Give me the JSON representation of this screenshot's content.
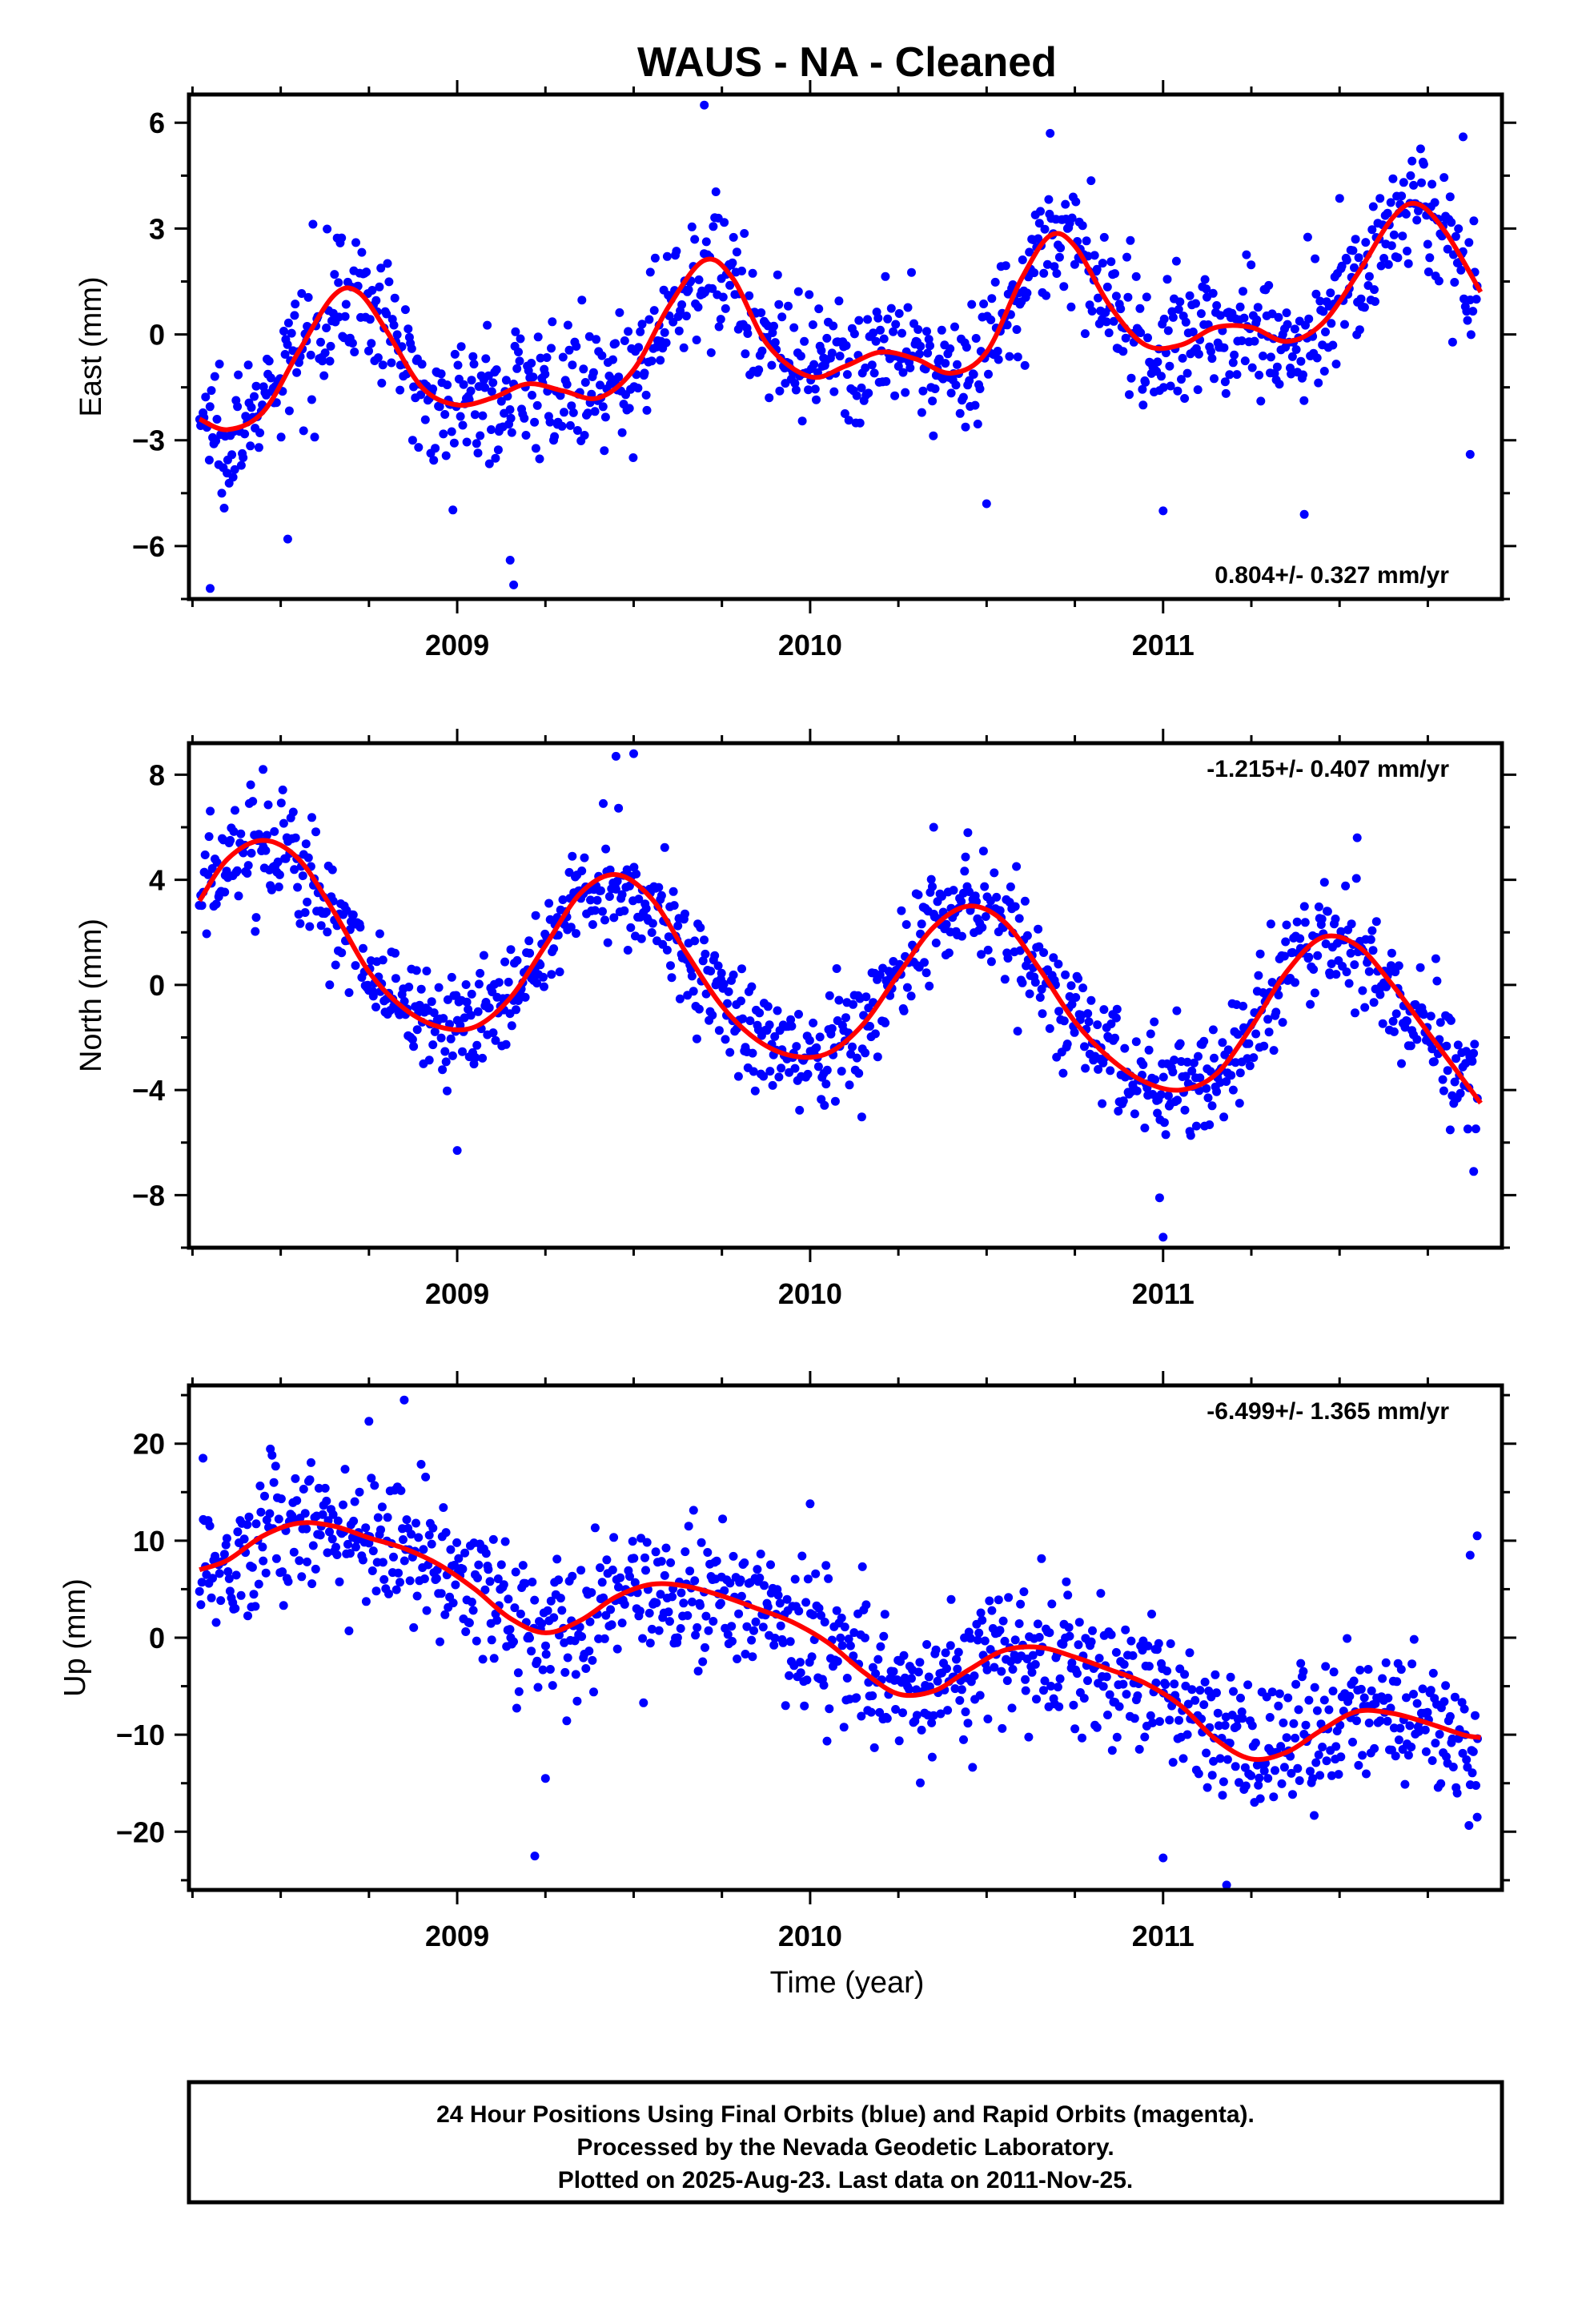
{
  "title": "WAUS  - NA - Cleaned",
  "x_axis_label": "Time (year)",
  "footer": {
    "line1": "24 Hour Positions Using Final Orbits (blue) and Rapid Orbits (magenta).",
    "line2": "Processed by the Nevada Geodetic Laboratory.",
    "line3": "Plotted on 2025-Aug-23. Last data on 2011-Nov-25."
  },
  "colors": {
    "points": "#0000ff",
    "fit": "#ff0000",
    "frame": "#000000"
  },
  "chart_data": [
    {
      "type": "scatter",
      "ylabel": "East (mm)",
      "rate_label": "0.804+/- 0.327 mm/yr",
      "xlim": [
        2008.24,
        2011.96
      ],
      "ylim": [
        -7.5,
        6.8
      ],
      "x_ticks": [
        2009,
        2010,
        2011
      ],
      "y_ticks": [
        -6,
        -3,
        0,
        3,
        6
      ],
      "grid": false,
      "point_color": "#0000ff",
      "fit_color": "#ff0000",
      "fit_curve": [
        [
          2008.27,
          -2.4
        ],
        [
          2008.35,
          -2.7
        ],
        [
          2008.45,
          -2.2
        ],
        [
          2008.55,
          -0.5
        ],
        [
          2008.65,
          1.1
        ],
        [
          2008.72,
          1.2
        ],
        [
          2008.8,
          0.1
        ],
        [
          2008.9,
          -1.5
        ],
        [
          2009.0,
          -2.0
        ],
        [
          2009.1,
          -1.8
        ],
        [
          2009.2,
          -1.4
        ],
        [
          2009.3,
          -1.6
        ],
        [
          2009.4,
          -1.8
        ],
        [
          2009.5,
          -1.0
        ],
        [
          2009.6,
          0.8
        ],
        [
          2009.7,
          2.1
        ],
        [
          2009.78,
          1.6
        ],
        [
          2009.88,
          -0.3
        ],
        [
          2010.0,
          -1.2
        ],
        [
          2010.1,
          -0.9
        ],
        [
          2010.2,
          -0.5
        ],
        [
          2010.3,
          -0.7
        ],
        [
          2010.4,
          -1.1
        ],
        [
          2010.5,
          -0.5
        ],
        [
          2010.6,
          1.6
        ],
        [
          2010.68,
          2.8
        ],
        [
          2010.75,
          2.5
        ],
        [
          2010.85,
          0.8
        ],
        [
          2010.95,
          -0.3
        ],
        [
          2011.05,
          -0.3
        ],
        [
          2011.15,
          0.2
        ],
        [
          2011.25,
          0.2
        ],
        [
          2011.35,
          -0.2
        ],
        [
          2011.45,
          0.3
        ],
        [
          2011.55,
          1.7
        ],
        [
          2011.65,
          3.3
        ],
        [
          2011.72,
          3.7
        ],
        [
          2011.8,
          2.9
        ],
        [
          2011.9,
          1.2
        ]
      ],
      "scatter": {
        "x_range": [
          2008.27,
          2011.89
        ],
        "n_points": 1080,
        "noise_sigma": 0.9,
        "outliers": [
          [
            2008.3,
            -7.2
          ],
          [
            2008.52,
            -5.8
          ],
          [
            2009.15,
            -6.4
          ],
          [
            2009.16,
            -7.1
          ],
          [
            2009.7,
            6.5
          ],
          [
            2010.5,
            -4.8
          ],
          [
            2010.68,
            5.7
          ],
          [
            2011.0,
            -5.0
          ],
          [
            2011.4,
            -5.1
          ],
          [
            2011.85,
            5.6
          ],
          [
            2011.87,
            -3.4
          ]
        ]
      }
    },
    {
      "type": "scatter",
      "ylabel": "North (mm)",
      "rate_label": "-1.215+/- 0.407 mm/yr",
      "xlim": [
        2008.24,
        2011.96
      ],
      "ylim": [
        -10,
        9.2
      ],
      "x_ticks": [
        2009,
        2010,
        2011
      ],
      "y_ticks": [
        -8,
        -4,
        0,
        4,
        8
      ],
      "grid": false,
      "point_color": "#0000ff",
      "fit_color": "#ff0000",
      "fit_curve": [
        [
          2008.27,
          3.2
        ],
        [
          2008.35,
          4.8
        ],
        [
          2008.45,
          5.5
        ],
        [
          2008.55,
          4.8
        ],
        [
          2008.65,
          2.8
        ],
        [
          2008.75,
          0.5
        ],
        [
          2008.85,
          -0.9
        ],
        [
          2008.95,
          -1.6
        ],
        [
          2009.05,
          -1.6
        ],
        [
          2009.15,
          -0.5
        ],
        [
          2009.25,
          1.5
        ],
        [
          2009.35,
          3.5
        ],
        [
          2009.45,
          4.2
        ],
        [
          2009.55,
          3.3
        ],
        [
          2009.65,
          1.2
        ],
        [
          2009.75,
          -0.8
        ],
        [
          2009.85,
          -2.1
        ],
        [
          2009.95,
          -2.7
        ],
        [
          2010.05,
          -2.6
        ],
        [
          2010.15,
          -1.5
        ],
        [
          2010.25,
          0.4
        ],
        [
          2010.35,
          2.2
        ],
        [
          2010.45,
          3.0
        ],
        [
          2010.55,
          2.4
        ],
        [
          2010.65,
          0.6
        ],
        [
          2010.75,
          -1.4
        ],
        [
          2010.85,
          -2.8
        ],
        [
          2010.95,
          -3.7
        ],
        [
          2011.05,
          -4.0
        ],
        [
          2011.15,
          -3.4
        ],
        [
          2011.25,
          -1.6
        ],
        [
          2011.35,
          0.5
        ],
        [
          2011.45,
          1.8
        ],
        [
          2011.55,
          1.5
        ],
        [
          2011.65,
          0.0
        ],
        [
          2011.75,
          -1.8
        ],
        [
          2011.85,
          -3.6
        ],
        [
          2011.9,
          -4.5
        ]
      ],
      "scatter": {
        "x_range": [
          2008.27,
          2011.89
        ],
        "n_points": 1080,
        "noise_sigma": 1.1,
        "outliers": [
          [
            2008.45,
            8.2
          ],
          [
            2009.0,
            -6.3
          ],
          [
            2009.45,
            8.7
          ],
          [
            2009.5,
            8.8
          ],
          [
            2010.35,
            6.0
          ],
          [
            2010.99,
            -8.1
          ],
          [
            2011.0,
            -9.6
          ],
          [
            2011.55,
            5.6
          ],
          [
            2011.88,
            -7.1
          ]
        ]
      }
    },
    {
      "type": "scatter",
      "ylabel": "Up (mm)",
      "rate_label": "-6.499+/- 1.365 mm/yr",
      "xlim": [
        2008.24,
        2011.96
      ],
      "ylim": [
        -26,
        26
      ],
      "x_ticks": [
        2009,
        2010,
        2011
      ],
      "y_ticks": [
        -20,
        -10,
        0,
        10,
        20
      ],
      "grid": false,
      "point_color": "#0000ff",
      "fit_color": "#ff0000",
      "fit_curve": [
        [
          2008.27,
          7.0
        ],
        [
          2008.35,
          8.0
        ],
        [
          2008.45,
          10.5
        ],
        [
          2008.55,
          11.8
        ],
        [
          2008.65,
          11.5
        ],
        [
          2008.75,
          10.3
        ],
        [
          2008.85,
          9.2
        ],
        [
          2008.95,
          7.5
        ],
        [
          2009.05,
          5.0
        ],
        [
          2009.15,
          2.0
        ],
        [
          2009.25,
          0.5
        ],
        [
          2009.35,
          1.8
        ],
        [
          2009.45,
          4.2
        ],
        [
          2009.55,
          5.5
        ],
        [
          2009.65,
          5.3
        ],
        [
          2009.75,
          4.3
        ],
        [
          2009.85,
          3.0
        ],
        [
          2009.95,
          1.6
        ],
        [
          2010.05,
          -0.5
        ],
        [
          2010.15,
          -3.5
        ],
        [
          2010.25,
          -5.8
        ],
        [
          2010.35,
          -5.5
        ],
        [
          2010.45,
          -3.3
        ],
        [
          2010.55,
          -1.3
        ],
        [
          2010.65,
          -1.0
        ],
        [
          2010.75,
          -2.0
        ],
        [
          2010.85,
          -3.3
        ],
        [
          2010.95,
          -4.7
        ],
        [
          2011.05,
          -7.0
        ],
        [
          2011.15,
          -10.5
        ],
        [
          2011.25,
          -12.5
        ],
        [
          2011.35,
          -11.8
        ],
        [
          2011.45,
          -9.5
        ],
        [
          2011.55,
          -7.6
        ],
        [
          2011.65,
          -7.8
        ],
        [
          2011.75,
          -8.8
        ],
        [
          2011.85,
          -10.0
        ],
        [
          2011.9,
          -10.3
        ]
      ],
      "scatter": {
        "x_range": [
          2008.27,
          2011.89
        ],
        "n_points": 1080,
        "noise_sigma": 3.6,
        "outliers": [
          [
            2008.28,
            18.5
          ],
          [
            2008.85,
            24.5
          ],
          [
            2008.75,
            22.3
          ],
          [
            2009.22,
            -22.5
          ],
          [
            2009.25,
            -14.5
          ],
          [
            2010.0,
            13.8
          ],
          [
            2011.0,
            -22.7
          ],
          [
            2011.18,
            -25.5
          ],
          [
            2011.87,
            8.5
          ],
          [
            2011.89,
            10.5
          ],
          [
            2011.89,
            -18.5
          ]
        ]
      }
    }
  ]
}
